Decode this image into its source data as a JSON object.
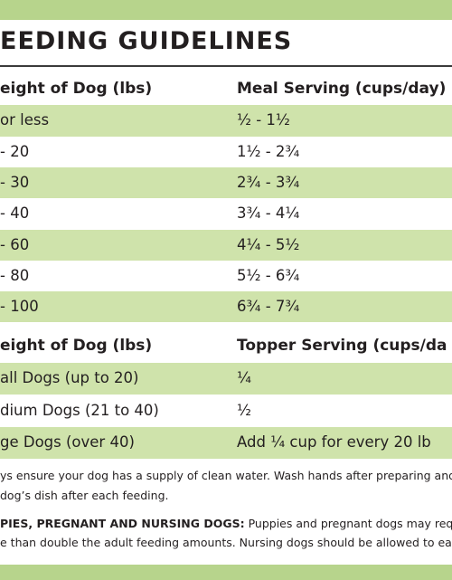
{
  "title": "EEDING GUIDELINES",
  "table1": {
    "header": [
      "eight of Dog (lbs)",
      "Meal Serving (cups/day)"
    ],
    "rows": [
      [
        "or less",
        "½ - 1½"
      ],
      [
        "- 20",
        "1½ - 2¾"
      ],
      [
        "- 30",
        "2¾ - 3¾"
      ],
      [
        "- 40",
        "3¾ - 4¼"
      ],
      [
        "- 60",
        "4¼ - 5½"
      ],
      [
        "- 80",
        "5½ - 6¾"
      ],
      [
        "- 100",
        "6¾ - 7¾"
      ]
    ]
  },
  "table2": {
    "header": [
      "eight of Dog (lbs)",
      "Topper Serving (cups/da"
    ],
    "rows": [
      [
        "all Dogs (up to 20)",
        "¼"
      ],
      [
        "dium Dogs (21 to 40)",
        "½"
      ],
      [
        "ge Dogs (over 40)",
        "Add ¼ cup for every 20 lb"
      ]
    ]
  },
  "notes": [
    {
      "lines": [
        "ys ensure your dog has a supply of clean water. Wash hands after preparing and c",
        "dog’s dish after each feeding."
      ]
    },
    {
      "lead": "PIES, PREGNANT AND NURSING DOGS:",
      "lines": [
        " Puppies and pregnant dogs may require",
        "e than double the adult feeding amounts. Nursing dogs should be allowed to eat at"
      ]
    }
  ]
}
